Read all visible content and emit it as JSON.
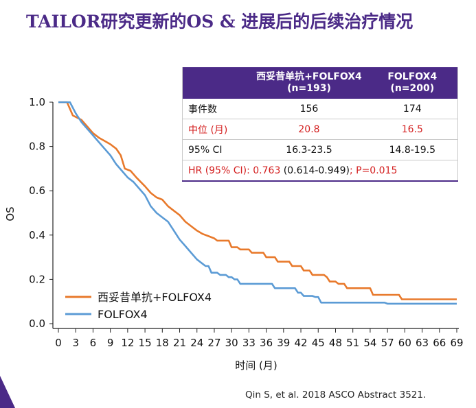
{
  "title": "TAILOR研究更新的OS & 进展后的后续治疗情况",
  "citation": "Qin S, et al. 2018 ASCO Abstract 3521.",
  "table": {
    "headers": [
      "",
      "西妥昔单抗+FOLFOX4\n(n=193)",
      "FOLFOX4\n(n=200)"
    ],
    "header_col1_line1": "西妥昔单抗+FOLFOX4",
    "header_col1_line2": "(n=193)",
    "header_col2_line1": "FOLFOX4",
    "header_col2_line2": "(n=200)",
    "rows": [
      {
        "label": "事件数",
        "a": "156",
        "b": "174",
        "highlight": false
      },
      {
        "label": "中位 (月)",
        "a": "20.8",
        "b": "16.5",
        "highlight": true
      },
      {
        "label": "95% CI",
        "a": "16.3-23.5",
        "b": "14.8-19.5",
        "highlight": false
      }
    ],
    "hr_label": "HR (95% CI): 0.763",
    "hr_ci": " (0.614-0.949)",
    "hr_p": "; P=0.015"
  },
  "colors": {
    "brand": "#4b2a87",
    "series_cetuximab": "#e8792b",
    "series_folfox": "#5b9bd5",
    "highlight_red": "#d42020"
  },
  "chart_data": {
    "type": "line",
    "title": "",
    "xlabel": "时间 (月)",
    "ylabel": "OS",
    "xlim": [
      0,
      69
    ],
    "ylim": [
      0,
      1.0
    ],
    "xticks": [
      "0",
      "3",
      "6",
      "9",
      "12",
      "15",
      "18",
      "21",
      "24",
      "27",
      "30",
      "33",
      "36",
      "39",
      "42",
      "45",
      "48",
      "51",
      "54",
      "57",
      "60",
      "63",
      "66",
      "69"
    ],
    "yticks": [
      "0.0",
      "0.2",
      "0.4",
      "0.6",
      "0.8",
      "1.0"
    ],
    "legend": "bottom-left",
    "series": [
      {
        "name": "西妥昔单抗+FOLFOX4",
        "color": "#e8792b",
        "points": [
          [
            0,
            1.0
          ],
          [
            1.5,
            1.0
          ],
          [
            2.5,
            0.94
          ],
          [
            4,
            0.92
          ],
          [
            5,
            0.89
          ],
          [
            6,
            0.86
          ],
          [
            7,
            0.84
          ],
          [
            8,
            0.825
          ],
          [
            9,
            0.81
          ],
          [
            10,
            0.79
          ],
          [
            10.8,
            0.76
          ],
          [
            11.5,
            0.7
          ],
          [
            12.5,
            0.69
          ],
          [
            13.5,
            0.66
          ],
          [
            15,
            0.62
          ],
          [
            16,
            0.59
          ],
          [
            17,
            0.57
          ],
          [
            18,
            0.56
          ],
          [
            19,
            0.53
          ],
          [
            20,
            0.51
          ],
          [
            21,
            0.49
          ],
          [
            22,
            0.46
          ],
          [
            23,
            0.44
          ],
          [
            24,
            0.42
          ],
          [
            25,
            0.405
          ],
          [
            26,
            0.395
          ],
          [
            27,
            0.385
          ],
          [
            27.5,
            0.375
          ],
          [
            28.5,
            0.375
          ],
          [
            29.5,
            0.375
          ],
          [
            30,
            0.345
          ],
          [
            31,
            0.345
          ],
          [
            31.5,
            0.335
          ],
          [
            33,
            0.335
          ],
          [
            33.5,
            0.32
          ],
          [
            35.5,
            0.32
          ],
          [
            36,
            0.3
          ],
          [
            37.5,
            0.3
          ],
          [
            38,
            0.28
          ],
          [
            40,
            0.28
          ],
          [
            40.5,
            0.26
          ],
          [
            42,
            0.26
          ],
          [
            42.5,
            0.24
          ],
          [
            43.5,
            0.24
          ],
          [
            44,
            0.22
          ],
          [
            46,
            0.22
          ],
          [
            46.5,
            0.21
          ],
          [
            47,
            0.19
          ],
          [
            48,
            0.19
          ],
          [
            48.5,
            0.18
          ],
          [
            49.5,
            0.18
          ],
          [
            50,
            0.16
          ],
          [
            54,
            0.16
          ],
          [
            54.5,
            0.13
          ],
          [
            59,
            0.13
          ],
          [
            59.5,
            0.11
          ],
          [
            69,
            0.11
          ]
        ]
      },
      {
        "name": "FOLFOX4",
        "color": "#5b9bd5",
        "points": [
          [
            0,
            1.0
          ],
          [
            2,
            1.0
          ],
          [
            3,
            0.95
          ],
          [
            4,
            0.91
          ],
          [
            5,
            0.88
          ],
          [
            6,
            0.85
          ],
          [
            7,
            0.82
          ],
          [
            8,
            0.79
          ],
          [
            9,
            0.76
          ],
          [
            10,
            0.72
          ],
          [
            11,
            0.69
          ],
          [
            12,
            0.66
          ],
          [
            13,
            0.64
          ],
          [
            14,
            0.61
          ],
          [
            15,
            0.58
          ],
          [
            16,
            0.53
          ],
          [
            17,
            0.5
          ],
          [
            18,
            0.48
          ],
          [
            19,
            0.46
          ],
          [
            20,
            0.42
          ],
          [
            21,
            0.38
          ],
          [
            22,
            0.35
          ],
          [
            23,
            0.32
          ],
          [
            24,
            0.29
          ],
          [
            25,
            0.27
          ],
          [
            25.5,
            0.26
          ],
          [
            26,
            0.26
          ],
          [
            26.5,
            0.23
          ],
          [
            27.5,
            0.23
          ],
          [
            28,
            0.22
          ],
          [
            29,
            0.22
          ],
          [
            29.5,
            0.21
          ],
          [
            30,
            0.21
          ],
          [
            30.5,
            0.2
          ],
          [
            31,
            0.2
          ],
          [
            31.5,
            0.18
          ],
          [
            37,
            0.18
          ],
          [
            37.5,
            0.16
          ],
          [
            41,
            0.16
          ],
          [
            41.5,
            0.14
          ],
          [
            42,
            0.14
          ],
          [
            42.5,
            0.125
          ],
          [
            44,
            0.125
          ],
          [
            44.5,
            0.12
          ],
          [
            45,
            0.12
          ],
          [
            45.5,
            0.095
          ],
          [
            56.5,
            0.095
          ],
          [
            57,
            0.09
          ],
          [
            69,
            0.09
          ]
        ]
      }
    ]
  }
}
